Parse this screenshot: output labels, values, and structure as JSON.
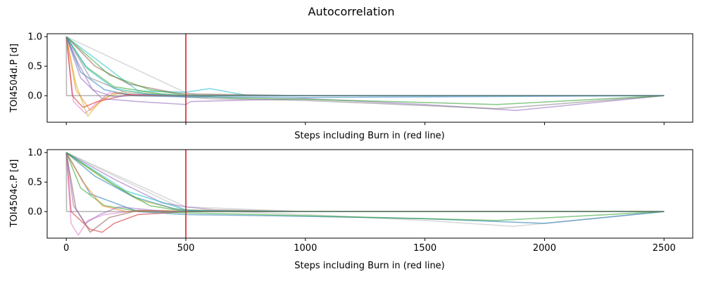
{
  "chart_data": {
    "type": "line",
    "title": "Autocorrelation",
    "subplots": [
      {
        "ylabel": "TOI4504d.P [d]",
        "xlabel": "Steps including Burn in (red line)",
        "xlim": [
          -80,
          2620
        ],
        "ylim": [
          -0.45,
          1.05
        ],
        "yticks": [
          0.0,
          0.5,
          1.0
        ],
        "ytick_labels": [
          "0.0",
          "0.5",
          "1.0"
        ],
        "xtick_labels_visible": false,
        "burn_in_line_x": 500,
        "series": [
          {
            "color": "#bbbbbb",
            "x": [
              0,
              500,
              560,
              1000,
              1500,
              2000,
              2500
            ],
            "y": [
              1.0,
              0.05,
              0.0,
              0.0,
              0.0,
              0.0,
              0.0
            ]
          },
          {
            "color": "#17becf",
            "x": [
              0,
              300,
              500,
              600,
              750,
              1000,
              2000,
              2500
            ],
            "y": [
              1.0,
              0.08,
              0.06,
              0.12,
              0.01,
              0.0,
              0.0,
              0.0
            ]
          },
          {
            "color": "#9467bd",
            "x": [
              0,
              60,
              150,
              300,
              500,
              520,
              1000,
              1500,
              1880,
              2500
            ],
            "y": [
              1.0,
              0.3,
              -0.05,
              -0.1,
              -0.15,
              -0.1,
              -0.05,
              -0.15,
              -0.25,
              0.0
            ]
          },
          {
            "color": "#7f7f7f",
            "x": [
              0,
              100,
              250,
              500,
              600,
              1000,
              1800,
              2500
            ],
            "y": [
              1.0,
              0.3,
              0.05,
              -0.02,
              -0.05,
              -0.08,
              -0.22,
              0.0
            ]
          },
          {
            "color": "#bcbd22",
            "x": [
              0,
              40,
              90,
              150,
              250,
              400,
              500,
              1000,
              2500
            ],
            "y": [
              1.0,
              0.2,
              -0.35,
              -0.05,
              0.08,
              0.02,
              0.0,
              0.0,
              0.0
            ]
          },
          {
            "color": "#e377c2",
            "x": [
              0,
              30,
              80,
              120,
              180,
              300,
              500,
              1000,
              2500
            ],
            "y": [
              1.0,
              -0.1,
              -0.3,
              -0.15,
              0.05,
              0.0,
              0.0,
              0.0,
              0.0
            ]
          },
          {
            "color": "#2ca02c",
            "x": [
              0,
              80,
              200,
              400,
              500,
              700,
              1000,
              1800,
              2500
            ],
            "y": [
              1.0,
              0.5,
              0.15,
              0.03,
              0.0,
              -0.04,
              -0.06,
              -0.15,
              0.0
            ]
          },
          {
            "color": "#ff7f0e",
            "x": [
              0,
              40,
              100,
              150,
              200,
              300,
              500,
              1000,
              2500
            ],
            "y": [
              1.0,
              0.1,
              -0.25,
              -0.08,
              0.05,
              0.0,
              0.0,
              0.0,
              0.0
            ]
          },
          {
            "color": "#1f77b4",
            "x": [
              0,
              60,
              160,
              280,
              500,
              1000,
              2500
            ],
            "y": [
              1.0,
              0.4,
              0.1,
              0.0,
              -0.02,
              -0.03,
              0.0
            ]
          },
          {
            "color": "#d62728",
            "x": [
              0,
              25,
              70,
              130,
              260,
              500,
              1000,
              2500
            ],
            "y": [
              1.0,
              0.0,
              -0.2,
              -0.1,
              0.02,
              0.0,
              0.0,
              0.0
            ]
          },
          {
            "color": "#8c564b",
            "x": [
              0,
              120,
              260,
              450,
              500,
              1000,
              2500
            ],
            "y": [
              1.0,
              0.5,
              0.2,
              0.05,
              0.03,
              0.0,
              0.0
            ]
          },
          {
            "color": "#2ca02c",
            "x": [
              0,
              180,
              350,
              500,
              1000,
              2500
            ],
            "y": [
              1.0,
              0.35,
              0.1,
              0.01,
              0.0,
              0.0
            ]
          },
          {
            "color": "#9467bd",
            "x": [
              0,
              50,
              110,
              200,
              330,
              500,
              1000,
              2500
            ],
            "y": [
              1.0,
              0.55,
              0.1,
              -0.02,
              0.02,
              0.0,
              0.0,
              0.0
            ]
          },
          {
            "color": "#17becf",
            "x": [
              0,
              90,
              200,
              340,
              500,
              1000,
              2500
            ],
            "y": [
              1.0,
              0.45,
              0.12,
              0.03,
              0.0,
              0.0,
              0.0
            ]
          },
          {
            "color": "#7f7f7f",
            "x": [
              0,
              1,
              2500
            ],
            "y": [
              1.0,
              0.0,
              0.0
            ]
          }
        ]
      },
      {
        "ylabel": "TOI4504c.P [d]",
        "xlabel": "Steps including Burn in (red line)",
        "xlim": [
          -80,
          2620
        ],
        "ylim": [
          -0.45,
          1.05
        ],
        "yticks": [
          0.0,
          0.5,
          1.0
        ],
        "ytick_labels": [
          "0.0",
          "0.5",
          "1.0"
        ],
        "xticks": [
          0,
          500,
          1000,
          1500,
          2000,
          2500
        ],
        "xtick_labels": [
          "0",
          "500",
          "1000",
          "1500",
          "2000",
          "2500"
        ],
        "xtick_labels_visible": true,
        "burn_in_line_x": 500,
        "series": [
          {
            "color": "#bbbbbb",
            "x": [
              0,
              300,
              500,
              1000,
              2500
            ],
            "y": [
              1.0,
              0.45,
              0.08,
              0.0,
              0.0
            ]
          },
          {
            "color": "#bbbbbb",
            "x": [
              0,
              500,
              620,
              1000,
              1500,
              1870,
              2500
            ],
            "y": [
              1.0,
              0.02,
              0.01,
              -0.05,
              -0.15,
              -0.25,
              0.0
            ]
          },
          {
            "color": "#9467bd",
            "x": [
              0,
              200,
              400,
              500,
              620,
              1000,
              2500
            ],
            "y": [
              1.0,
              0.55,
              0.15,
              0.08,
              0.03,
              0.0,
              0.0
            ]
          },
          {
            "color": "#1f77b4",
            "x": [
              0,
              100,
              300,
              500,
              1000,
              1500,
              2000,
              2500
            ],
            "y": [
              1.0,
              0.3,
              0.0,
              -0.05,
              -0.08,
              -0.12,
              -0.2,
              0.0
            ]
          },
          {
            "color": "#d62728",
            "x": [
              0,
              20,
              60,
              100,
              150,
              200,
              300,
              500,
              1000,
              2500
            ],
            "y": [
              1.0,
              0.0,
              -0.15,
              -0.3,
              -0.35,
              -0.2,
              -0.05,
              0.0,
              0.0,
              0.0
            ]
          },
          {
            "color": "#e377c2",
            "x": [
              0,
              20,
              50,
              90,
              160,
              300,
              500,
              1000,
              2500
            ],
            "y": [
              1.0,
              -0.2,
              -0.4,
              -0.15,
              -0.05,
              0.02,
              0.0,
              0.0,
              0.0
            ]
          },
          {
            "color": "#bcbd22",
            "x": [
              0,
              140,
              300,
              450,
              500,
              1000,
              2500
            ],
            "y": [
              1.0,
              0.6,
              0.2,
              0.05,
              0.03,
              0.0,
              0.0
            ]
          },
          {
            "color": "#17becf",
            "x": [
              0,
              250,
              500,
              600,
              1000,
              2500
            ],
            "y": [
              1.0,
              0.35,
              0.03,
              0.0,
              0.0,
              0.0
            ]
          },
          {
            "color": "#2ca02c",
            "x": [
              0,
              60,
              160,
              300,
              500,
              700,
              1000,
              1800,
              2500
            ],
            "y": [
              1.0,
              0.4,
              0.1,
              0.01,
              -0.02,
              -0.04,
              -0.07,
              -0.15,
              0.0
            ]
          },
          {
            "color": "#8c564b",
            "x": [
              0,
              40,
              100,
              180,
              300,
              500,
              1000,
              2500
            ],
            "y": [
              1.0,
              0.05,
              -0.35,
              -0.1,
              0.02,
              0.0,
              0.0,
              0.0
            ]
          },
          {
            "color": "#ff7f0e",
            "x": [
              0,
              70,
              150,
              250,
              400,
              500,
              1000,
              2500
            ],
            "y": [
              1.0,
              0.5,
              0.1,
              0.0,
              0.02,
              0.0,
              0.0,
              0.0
            ]
          },
          {
            "color": "#9467bd",
            "x": [
              0,
              30,
              80,
              140,
              220,
              400,
              500,
              1000,
              2500
            ],
            "y": [
              1.0,
              0.1,
              -0.2,
              -0.05,
              0.08,
              0.01,
              0.0,
              0.0,
              0.0
            ]
          },
          {
            "color": "#1f77b4",
            "x": [
              0,
              120,
              280,
              450,
              500,
              1000,
              2500
            ],
            "y": [
              1.0,
              0.6,
              0.25,
              0.05,
              0.02,
              0.0,
              0.0
            ]
          },
          {
            "color": "#2ca02c",
            "x": [
              0,
              200,
              350,
              500,
              1000,
              2500
            ],
            "y": [
              1.0,
              0.45,
              0.1,
              0.0,
              0.0,
              0.0
            ]
          },
          {
            "color": "#7f7f7f",
            "x": [
              0,
              1,
              2500
            ],
            "y": [
              1.0,
              0.0,
              0.0
            ]
          }
        ]
      }
    ]
  }
}
